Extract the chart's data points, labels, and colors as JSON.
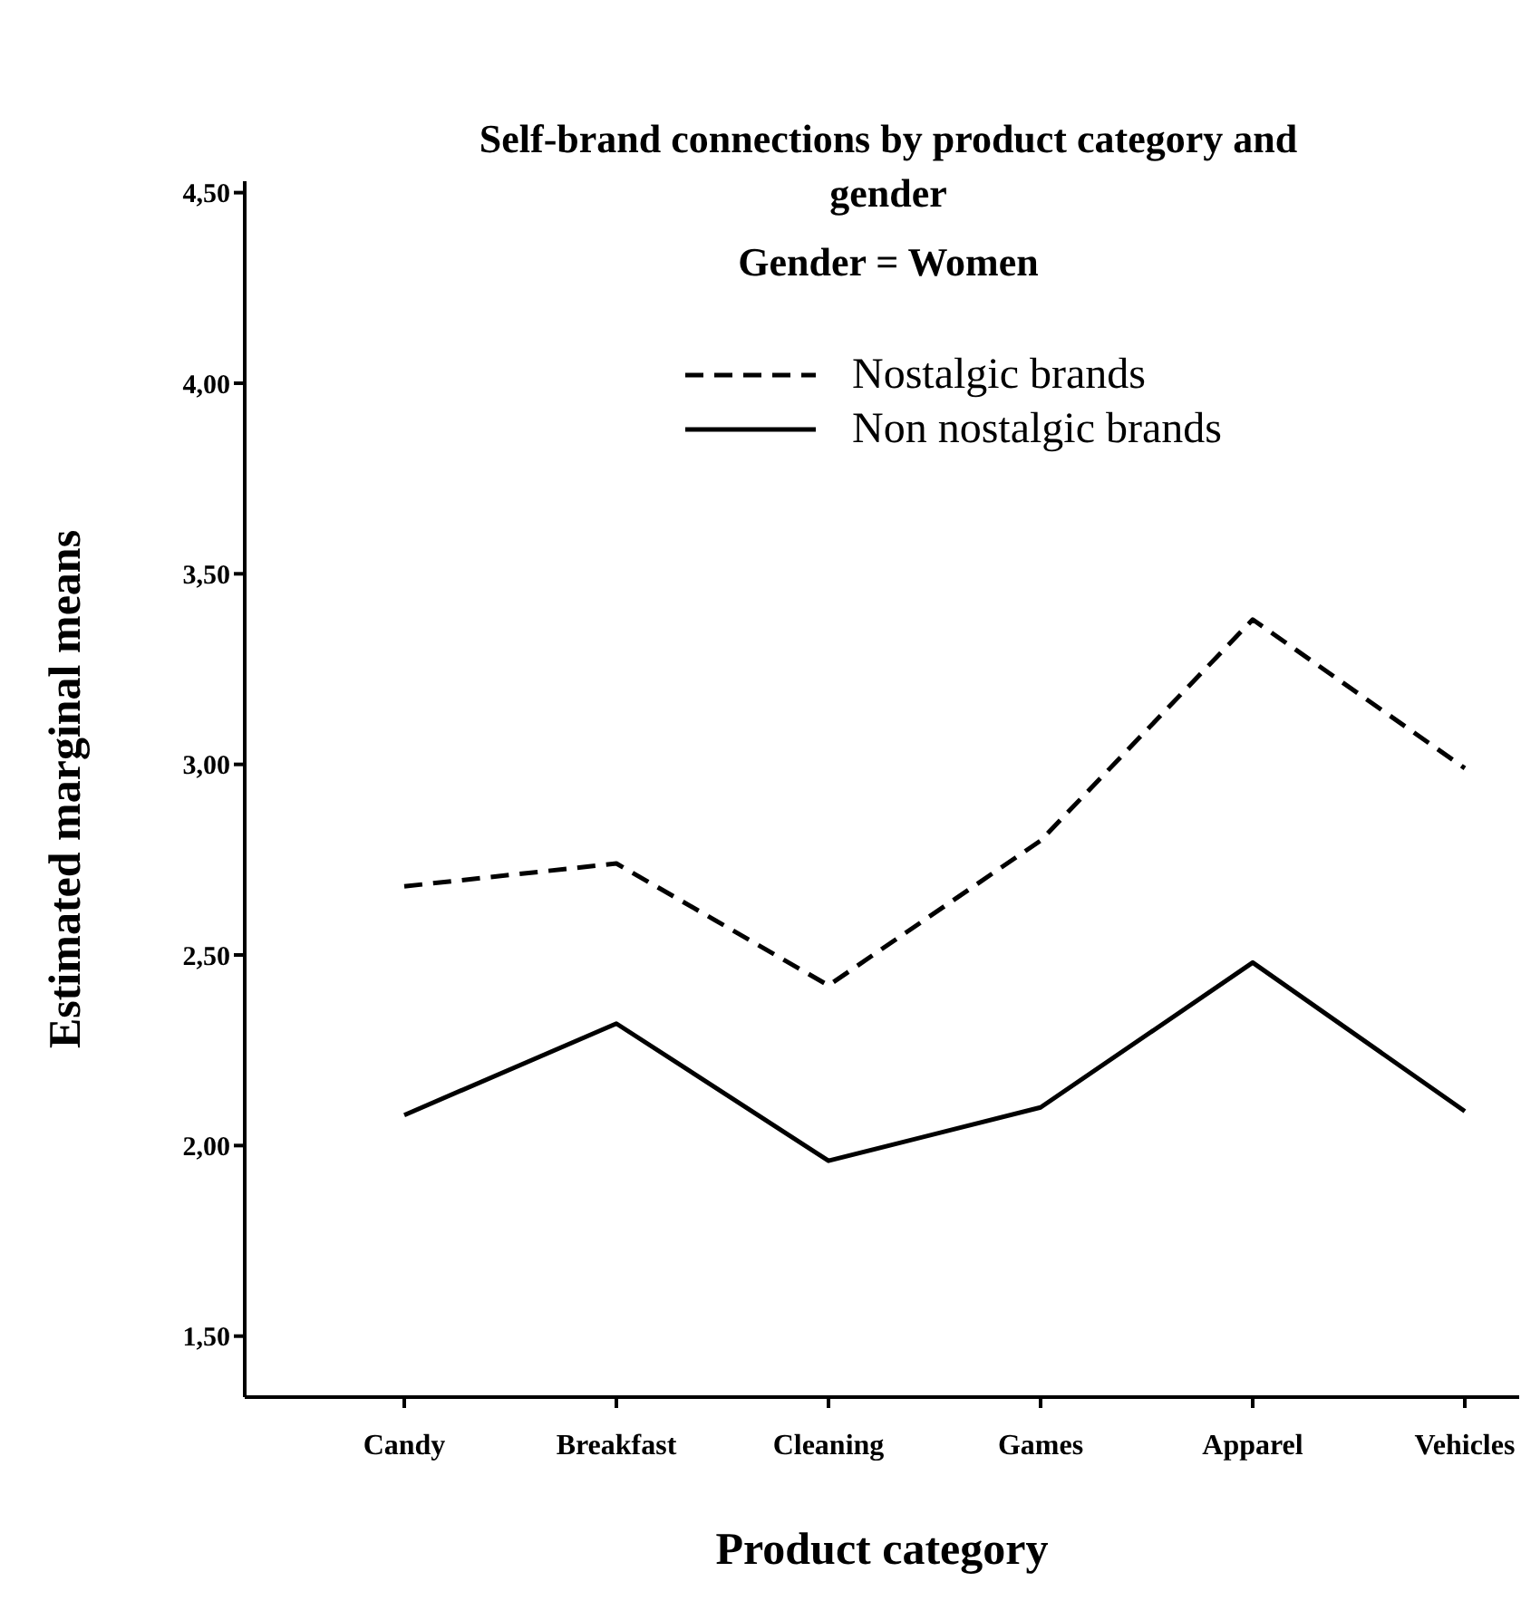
{
  "chart_data": {
    "type": "line",
    "title": "Self-brand connections by product category and gender",
    "subtitle": "Gender = Women",
    "xlabel": "Product category",
    "ylabel": "Estimated marginal means",
    "categories": [
      "Candy",
      "Breakfast",
      "Cleaning",
      "Games",
      "Apparel",
      "Vehicles"
    ],
    "series": [
      {
        "name": "Nostalgic brands",
        "color": "#000000",
        "line_style": "dashed",
        "values": [
          2.68,
          2.74,
          2.42,
          2.8,
          3.38,
          2.99
        ]
      },
      {
        "name": "Non nostalgic brands",
        "color": "#000000",
        "line_style": "solid",
        "values": [
          2.08,
          2.32,
          1.96,
          2.1,
          2.48,
          2.09
        ]
      }
    ],
    "ylim": [
      1.34,
      4.53
    ],
    "yticks": [
      {
        "value": 1.5,
        "label": "1,50"
      },
      {
        "value": 2,
        "label": "2,00"
      },
      {
        "value": 2.5,
        "label": "2,50"
      },
      {
        "value": 3,
        "label": "3,00"
      },
      {
        "value": 3.5,
        "label": "3,50"
      },
      {
        "value": 4,
        "label": "4,00"
      },
      {
        "value": 4.5,
        "label": "4,50"
      }
    ],
    "legend": "top",
    "marker": "none"
  }
}
